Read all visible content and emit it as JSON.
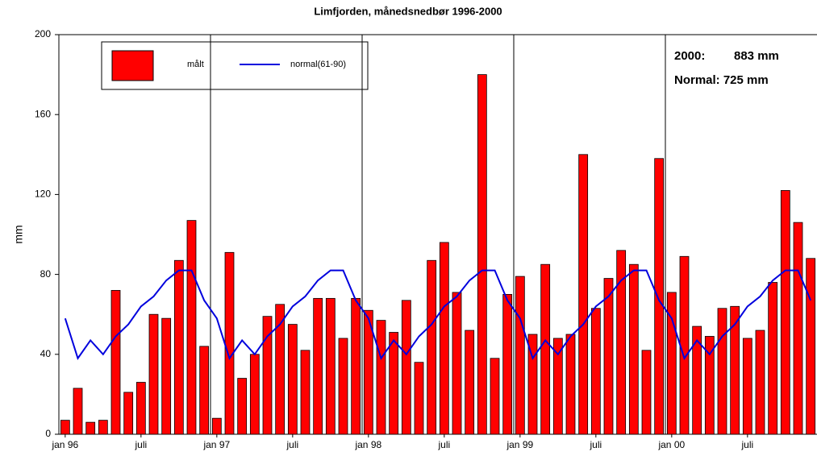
{
  "chart_data": {
    "type": "bar",
    "title": "Limfjorden, månedsnedbør 1996-2000",
    "y_label": "mm",
    "categories": [
      "jan 96",
      null,
      null,
      null,
      null,
      null,
      "juli",
      null,
      null,
      null,
      null,
      null,
      "jan 97",
      null,
      null,
      null,
      null,
      null,
      "juli",
      null,
      null,
      null,
      null,
      null,
      "jan 98",
      null,
      null,
      null,
      null,
      null,
      "juli",
      null,
      null,
      null,
      null,
      null,
      "jan 99",
      null,
      null,
      null,
      null,
      null,
      "juli",
      null,
      null,
      null,
      null,
      null,
      "jan 00",
      null,
      null,
      null,
      null,
      null,
      "juli",
      null,
      null,
      null,
      null,
      null
    ],
    "series": [
      {
        "name": "målt",
        "type": "bar",
        "color": "#ff0000",
        "values": [
          7,
          23,
          6,
          7,
          72,
          21,
          26,
          60,
          58,
          87,
          107,
          44,
          8,
          91,
          28,
          40,
          59,
          65,
          55,
          42,
          68,
          68,
          48,
          68,
          62,
          57,
          51,
          67,
          36,
          87,
          96,
          71,
          52,
          180,
          38,
          70,
          79,
          50,
          85,
          48,
          50,
          140,
          63,
          78,
          92,
          85,
          42,
          138,
          71,
          89,
          54,
          49,
          63,
          64,
          48,
          52,
          76,
          122,
          106,
          88
        ]
      },
      {
        "name": "normal(61-90)",
        "type": "line",
        "color": "#0000dd",
        "values": [
          58,
          38,
          47,
          40,
          49,
          55,
          64,
          69,
          77,
          82,
          82,
          67,
          58,
          38,
          47,
          40,
          49,
          55,
          64,
          69,
          77,
          82,
          82,
          67,
          58,
          38,
          47,
          40,
          49,
          55,
          64,
          69,
          77,
          82,
          82,
          67,
          58,
          38,
          47,
          40,
          49,
          55,
          64,
          69,
          77,
          82,
          82,
          67,
          58,
          38,
          47,
          40,
          49,
          55,
          64,
          69,
          77,
          82,
          82,
          67
        ]
      }
    ],
    "annotations": [
      "2000:",
      "883 mm",
      "Normal: 725 mm"
    ],
    "ylim": [
      0,
      200
    ],
    "yticks": [
      0,
      40,
      80,
      120,
      160,
      200
    ]
  }
}
